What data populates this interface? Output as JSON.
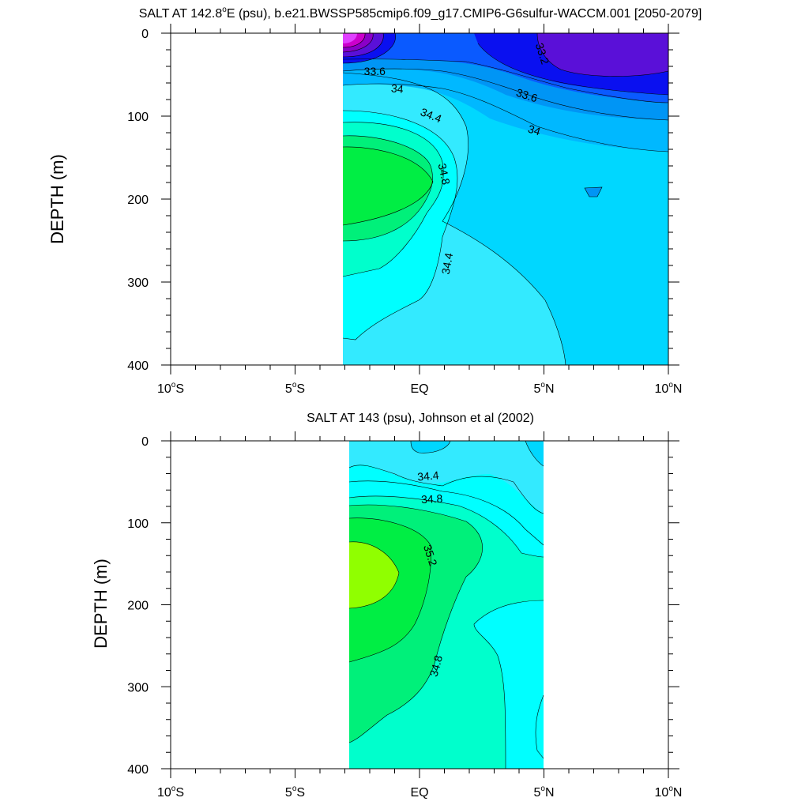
{
  "panels": [
    {
      "chart_data": {
        "type": "heatmap",
        "title": "SALT AT 142.8°E (psu), b.e21.BWSSP585cmip6.f09_g17.CMIP6-G6sulfur-WACCM.001 [2050-2079]",
        "title_parts": {
          "a": "SALT AT 142.8",
          "deg": "o",
          "b": "E (psu), b.e21.BWSSP585cmip6.f09_g17.CMIP6-G6sulfur-WACCM.001 [2050-2079]"
        },
        "ylabel": "DEPTH (m)",
        "xlim": [
          -10,
          10
        ],
        "ylim": [
          0,
          400
        ],
        "data_x_range": [
          -3,
          10
        ],
        "x_ticks": [
          {
            "v": -10,
            "num": "10",
            "hemi": "S"
          },
          {
            "v": -5,
            "num": "5",
            "hemi": "S"
          },
          {
            "v": 0,
            "num": "EQ",
            "hemi": ""
          },
          {
            "v": 5,
            "num": "5",
            "hemi": "N"
          },
          {
            "v": 10,
            "num": "10",
            "hemi": "N"
          }
        ],
        "y_ticks": [
          0,
          100,
          200,
          300,
          400
        ],
        "contour_labels": [
          {
            "text": "33.2",
            "x": 4.9,
            "y": 25,
            "rot": 72
          },
          {
            "text": "33.6",
            "x": -1.8,
            "y": 47,
            "rot": 0
          },
          {
            "text": "34",
            "x": -0.9,
            "y": 68,
            "rot": 5
          },
          {
            "text": "33.6",
            "x": 4.3,
            "y": 76,
            "rot": 18
          },
          {
            "text": "34.4",
            "x": 0.45,
            "y": 100,
            "rot": 22
          },
          {
            "text": "34",
            "x": 4.6,
            "y": 118,
            "rot": 17
          },
          {
            "text": "34.8",
            "x": 0.95,
            "y": 170,
            "rot": 78
          },
          {
            "text": "34.4",
            "x": 1.15,
            "y": 278,
            "rot": -80
          }
        ]
      }
    },
    {
      "chart_data": {
        "type": "heatmap",
        "title": "SALT AT 143 (psu), Johnson et al (2002)",
        "ylabel": "DEPTH (m)",
        "xlim": [
          -10,
          10
        ],
        "ylim": [
          0,
          400
        ],
        "data_x_range": [
          -2.8,
          5
        ],
        "x_ticks": [
          {
            "v": -10,
            "num": "10",
            "hemi": "S"
          },
          {
            "v": -5,
            "num": "5",
            "hemi": "S"
          },
          {
            "v": 0,
            "num": "EQ",
            "hemi": ""
          },
          {
            "v": 5,
            "num": "5",
            "hemi": "N"
          },
          {
            "v": 10,
            "num": "10",
            "hemi": "N"
          }
        ],
        "y_ticks": [
          0,
          100,
          200,
          300,
          400
        ],
        "contour_labels": [
          {
            "text": "34.4",
            "x": 0.35,
            "y": 44,
            "rot": -5
          },
          {
            "text": "34.8",
            "x": 0.5,
            "y": 72,
            "rot": -3
          },
          {
            "text": "35.2",
            "x": 0.4,
            "y": 140,
            "rot": 72
          },
          {
            "text": "34.8",
            "x": 0.7,
            "y": 275,
            "rot": -75
          }
        ]
      }
    }
  ],
  "colors": {
    "axis": "#000000",
    "levels": {
      "s32_4": "#cc00cc",
      "s32_8": "#8a00c8",
      "s33_2": "#5a10d8",
      "s33_4": "#0a10f0",
      "s33_6": "#0a5aff",
      "s33_8": "#0095f5",
      "s34_0": "#00b8ff",
      "s34_2": "#00d7ff",
      "s34_4": "#33eaff",
      "s34_6": "#00ffff",
      "s34_8": "#00ffcc",
      "s35_0": "#00f07a",
      "s35_2": "#00ee44",
      "s35_4": "#90ff00"
    }
  }
}
